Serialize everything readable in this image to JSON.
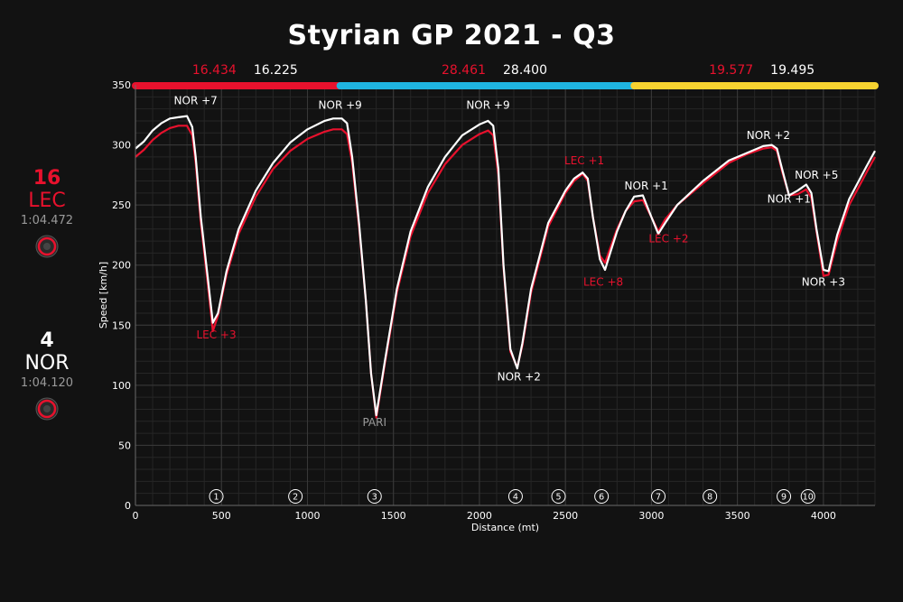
{
  "title": "Styrian GP 2021 - Q3",
  "colors": {
    "background": "#121212",
    "lec": "#e8112d",
    "nor": "#ffffff",
    "sector1": "#e8112d",
    "sector2": "#1fb4e0",
    "sector3": "#f7d330",
    "grid": "#3a3a3a",
    "subgrid": "#262626",
    "pari": "#9a9a9a"
  },
  "drivers": [
    {
      "number": "16",
      "code": "LEC",
      "laptime": "1:04.472",
      "color": "#e8112d",
      "tyre": "soft"
    },
    {
      "number": "4",
      "code": "NOR",
      "laptime": "1:04.120",
      "color": "#ffffff",
      "tyre": "soft"
    }
  ],
  "sectors": [
    {
      "lec": "16.434",
      "nor": "16.225",
      "start": 0,
      "end": 1190,
      "color": "#e8112d"
    },
    {
      "lec": "28.461",
      "nor": "28.400",
      "start": 1190,
      "end": 2900,
      "color": "#1fb4e0"
    },
    {
      "lec": "19.577",
      "nor": "19.495",
      "start": 2900,
      "end": 4300,
      "color": "#f7d330"
    }
  ],
  "chart_data": {
    "type": "line",
    "xlabel": "Distance (mt)",
    "ylabel": "Speed [km/h]",
    "xlim": [
      0,
      4300
    ],
    "ylim": [
      0,
      350
    ],
    "xticks": [
      0,
      500,
      1000,
      1500,
      2000,
      2500,
      3000,
      3500,
      4000
    ],
    "yticks": [
      0,
      50,
      100,
      150,
      200,
      250,
      300,
      350
    ],
    "grid": true,
    "series": [
      {
        "name": "NOR",
        "color": "#ffffff",
        "x": [
          0,
          50,
          100,
          150,
          200,
          250,
          300,
          330,
          350,
          380,
          420,
          450,
          480,
          530,
          600,
          700,
          800,
          900,
          1000,
          1100,
          1150,
          1200,
          1230,
          1260,
          1300,
          1340,
          1370,
          1400,
          1450,
          1520,
          1600,
          1700,
          1800,
          1900,
          2000,
          2050,
          2080,
          2110,
          2140,
          2180,
          2220,
          2250,
          2300,
          2400,
          2500,
          2550,
          2600,
          2630,
          2660,
          2700,
          2730,
          2760,
          2800,
          2850,
          2900,
          2950,
          3000,
          3040,
          3080,
          3150,
          3300,
          3450,
          3550,
          3650,
          3700,
          3730,
          3760,
          3800,
          3850,
          3900,
          3930,
          3960,
          4000,
          4030,
          4080,
          4150,
          4250,
          4300
        ],
        "y": [
          297,
          303,
          312,
          318,
          322,
          323,
          324,
          315,
          290,
          240,
          190,
          152,
          160,
          195,
          230,
          262,
          285,
          302,
          313,
          320,
          322,
          322,
          318,
          290,
          235,
          170,
          110,
          75,
          120,
          180,
          228,
          265,
          290,
          308,
          317,
          320,
          316,
          280,
          200,
          130,
          114,
          135,
          180,
          235,
          262,
          272,
          277,
          272,
          240,
          205,
          196,
          210,
          228,
          245,
          257,
          258,
          240,
          226,
          235,
          250,
          270,
          287,
          293,
          299,
          300,
          297,
          280,
          258,
          262,
          267,
          260,
          230,
          196,
          195,
          225,
          255,
          282,
          295
        ]
      },
      {
        "name": "LEC",
        "color": "#e8112d",
        "x": [
          0,
          50,
          100,
          150,
          200,
          250,
          300,
          330,
          350,
          380,
          420,
          450,
          480,
          530,
          600,
          700,
          800,
          900,
          1000,
          1100,
          1150,
          1200,
          1230,
          1260,
          1300,
          1340,
          1370,
          1400,
          1450,
          1520,
          1600,
          1700,
          1800,
          1900,
          2000,
          2050,
          2080,
          2110,
          2140,
          2180,
          2220,
          2250,
          2300,
          2400,
          2500,
          2550,
          2600,
          2630,
          2660,
          2700,
          2730,
          2760,
          2800,
          2850,
          2900,
          2950,
          3000,
          3040,
          3080,
          3150,
          3300,
          3450,
          3550,
          3650,
          3700,
          3730,
          3760,
          3800,
          3850,
          3900,
          3930,
          3960,
          4000,
          4030,
          4080,
          4150,
          4250,
          4300
        ],
        "y": [
          290,
          296,
          304,
          310,
          314,
          316,
          316,
          308,
          285,
          235,
          185,
          145,
          158,
          192,
          226,
          257,
          280,
          295,
          305,
          311,
          313,
          313,
          309,
          285,
          232,
          170,
          110,
          73,
          118,
          177,
          224,
          260,
          284,
          300,
          309,
          312,
          308,
          275,
          198,
          128,
          115,
          133,
          177,
          232,
          260,
          270,
          276,
          270,
          240,
          208,
          202,
          214,
          230,
          245,
          253,
          254,
          240,
          228,
          238,
          250,
          268,
          285,
          292,
          297,
          298,
          295,
          278,
          258,
          259,
          263,
          256,
          228,
          191,
          192,
          220,
          250,
          277,
          290
        ]
      }
    ],
    "annotations": [
      {
        "text": "NOR +7",
        "x": 350,
        "y": 334,
        "color": "#ffffff"
      },
      {
        "text": "LEC +3",
        "x": 470,
        "y": 139,
        "color": "#e8112d"
      },
      {
        "text": "NOR +9",
        "x": 1190,
        "y": 330,
        "color": "#ffffff"
      },
      {
        "text": "PARI",
        "x": 1390,
        "y": 66,
        "color": "#9a9a9a"
      },
      {
        "text": "NOR +9",
        "x": 2050,
        "y": 330,
        "color": "#ffffff"
      },
      {
        "text": "NOR +2",
        "x": 2230,
        "y": 104,
        "color": "#ffffff"
      },
      {
        "text": "LEC +1",
        "x": 2610,
        "y": 284,
        "color": "#e8112d"
      },
      {
        "text": "LEC +8",
        "x": 2720,
        "y": 183,
        "color": "#e8112d"
      },
      {
        "text": "NOR +1",
        "x": 2970,
        "y": 263,
        "color": "#ffffff"
      },
      {
        "text": "LEC +2",
        "x": 3100,
        "y": 219,
        "color": "#e8112d"
      },
      {
        "text": "NOR +2",
        "x": 3680,
        "y": 305,
        "color": "#ffffff"
      },
      {
        "text": "NOR +5",
        "x": 3960,
        "y": 272,
        "color": "#ffffff"
      },
      {
        "text": "NOR +1",
        "x": 3800,
        "y": 252,
        "color": "#ffffff"
      },
      {
        "text": "NOR +3",
        "x": 4000,
        "y": 183,
        "color": "#ffffff"
      }
    ],
    "corners": [
      {
        "label": "1",
        "x": 470
      },
      {
        "label": "2",
        "x": 930
      },
      {
        "label": "3",
        "x": 1390
      },
      {
        "label": "4",
        "x": 2210
      },
      {
        "label": "5",
        "x": 2460
      },
      {
        "label": "6",
        "x": 2710
      },
      {
        "label": "7",
        "x": 3040
      },
      {
        "label": "8",
        "x": 3340
      },
      {
        "label": "9",
        "x": 3770
      },
      {
        "label": "10",
        "x": 3910
      }
    ]
  }
}
